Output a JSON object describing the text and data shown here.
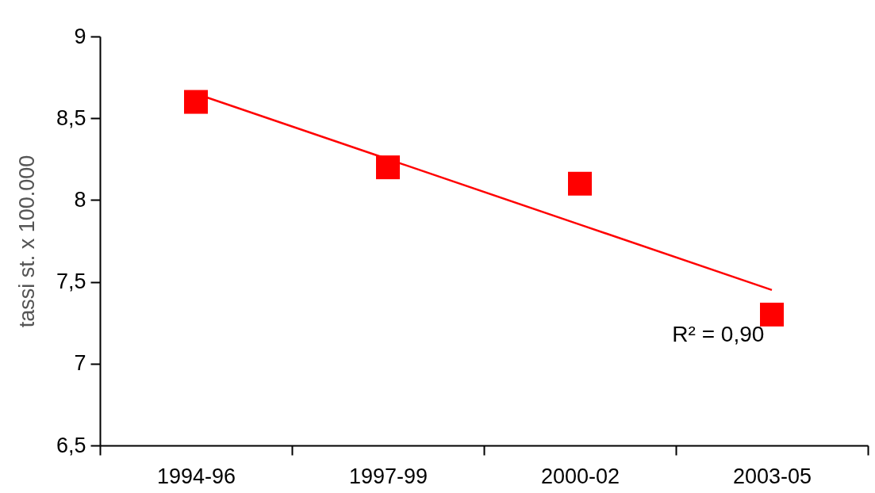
{
  "chart_data": {
    "type": "scatter",
    "ylabel": "tassi st. x 100.000",
    "categories": [
      "1994-96",
      "1997-99",
      "2000-02",
      "2003-05"
    ],
    "series": [
      {
        "color": "#ff0000",
        "marker": "square",
        "values": [
          8.6,
          8.2,
          8.1,
          7.3
        ]
      },
      {
        "type": "line",
        "color": "#ff0000",
        "marker": "none",
        "values": [
          8.65,
          8.25,
          7.85,
          7.45
        ]
      }
    ],
    "ylim": [
      6.5,
      9
    ],
    "yticks": [
      {
        "value": 6.5,
        "label": "6,5"
      },
      7,
      {
        "value": 7.5,
        "label": "7,5"
      },
      8,
      {
        "value": 8.5,
        "label": "8,5"
      },
      9
    ],
    "grid": false,
    "annotations": [
      "R² = 0,90"
    ]
  }
}
